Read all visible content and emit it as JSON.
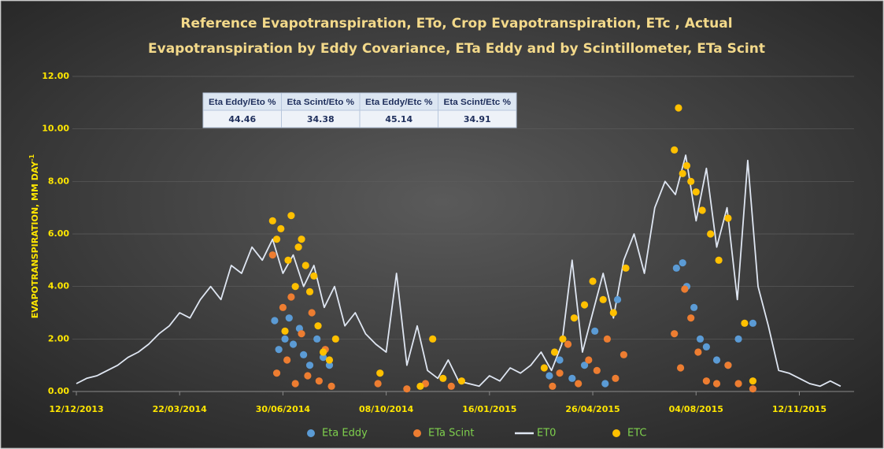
{
  "chart_data": {
    "type": "scatter",
    "title": [
      "Reference Evapotranspiration, ETo, Crop Evapotranspiration, ETc , Actual",
      "Evapotranspiration by Eddy Covariance, ETa Eddy and by Scintillometer, ETa Scint"
    ],
    "ylabel": "EVAPOTRANSPIRATION, MM DAY",
    "ylabel_superscript": "-1",
    "ylim": [
      0,
      12
    ],
    "yticks": [
      {
        "value": 0,
        "label": "0.00"
      },
      {
        "value": 2,
        "label": "2.00"
      },
      {
        "value": 4,
        "label": "4.00"
      },
      {
        "value": 6,
        "label": "6.00"
      },
      {
        "value": 8,
        "label": "8.00"
      },
      {
        "value": 10,
        "label": "10.00"
      },
      {
        "value": 12,
        "label": "12.00"
      }
    ],
    "xlim": [
      "12/12/2013",
      "04/01/2016"
    ],
    "xticks": [
      "12/12/2013",
      "22/03/2014",
      "30/06/2014",
      "08/10/2014",
      "16/01/2015",
      "26/04/2015",
      "04/08/2015",
      "12/11/2015"
    ],
    "grid": true,
    "legend": "bottom",
    "table": {
      "headers": [
        "Eta Eddy/Eto %",
        "Eta Scint/Eto %",
        "Eta Eddy/Etc %",
        "Eta Scint/Etc %"
      ],
      "values": [
        44.46,
        34.38,
        45.14,
        34.91
      ]
    },
    "series": [
      {
        "name": "Eta Eddy",
        "type": "scatter",
        "color": "#5b9bd5",
        "x": [
          "22/06/2014",
          "26/06/2014",
          "02/07/2014",
          "06/07/2014",
          "10/07/2014",
          "16/07/2014",
          "20/07/2014",
          "26/07/2014",
          "02/08/2014",
          "08/08/2014",
          "14/08/2014",
          "15/03/2015",
          "25/03/2015",
          "06/04/2015",
          "18/04/2015",
          "28/04/2015",
          "08/05/2015",
          "20/05/2015",
          "16/07/2015",
          "22/07/2015",
          "26/07/2015",
          "02/08/2015",
          "08/08/2015",
          "14/08/2015",
          "24/08/2015",
          "04/09/2015",
          "14/09/2015",
          "28/09/2015"
        ],
        "values": [
          2.7,
          1.6,
          2.0,
          2.8,
          1.8,
          2.4,
          1.4,
          1.0,
          2.0,
          1.3,
          1.0,
          0.6,
          1.2,
          0.5,
          1.0,
          2.3,
          0.3,
          3.5,
          4.7,
          4.9,
          4.0,
          3.2,
          2.0,
          1.7,
          1.2,
          1.0,
          2.0,
          2.6
        ]
      },
      {
        "name": "ETa Scint",
        "type": "scatter",
        "color": "#ed7d31",
        "x": [
          "20/06/2014",
          "24/06/2014",
          "30/06/2014",
          "04/07/2014",
          "08/07/2014",
          "12/07/2014",
          "18/07/2014",
          "24/07/2014",
          "28/07/2014",
          "04/08/2014",
          "10/08/2014",
          "16/08/2014",
          "30/09/2014",
          "28/10/2014",
          "15/11/2014",
          "10/12/2014",
          "18/03/2015",
          "25/03/2015",
          "02/04/2015",
          "12/04/2015",
          "22/04/2015",
          "30/04/2015",
          "10/05/2015",
          "18/05/2015",
          "26/05/2015",
          "14/07/2015",
          "20/07/2015",
          "24/07/2015",
          "30/07/2015",
          "06/08/2015",
          "14/08/2015",
          "24/08/2015",
          "04/09/2015",
          "14/09/2015",
          "28/09/2015"
        ],
        "values": [
          5.2,
          0.7,
          3.2,
          1.2,
          3.6,
          0.3,
          2.2,
          0.6,
          3.0,
          0.4,
          1.6,
          0.2,
          0.3,
          0.1,
          0.3,
          0.2,
          0.2,
          0.7,
          1.8,
          0.3,
          1.2,
          0.8,
          2.0,
          0.5,
          1.4,
          2.2,
          0.9,
          3.9,
          2.8,
          1.5,
          0.4,
          0.3,
          1.0,
          0.3,
          0.1
        ]
      },
      {
        "name": "ET0",
        "type": "line",
        "color": "#dfe6f2",
        "x": [
          "12/12/2013",
          "22/12/2013",
          "01/01/2014",
          "11/01/2014",
          "21/01/2014",
          "31/01/2014",
          "10/02/2014",
          "20/02/2014",
          "02/03/2014",
          "12/03/2014",
          "22/03/2014",
          "01/04/2014",
          "11/04/2014",
          "21/04/2014",
          "01/05/2014",
          "11/05/2014",
          "21/05/2014",
          "31/05/2014",
          "10/06/2014",
          "20/06/2014",
          "30/06/2014",
          "10/07/2014",
          "20/07/2014",
          "30/07/2014",
          "09/08/2014",
          "19/08/2014",
          "29/08/2014",
          "08/09/2014",
          "18/09/2014",
          "28/09/2014",
          "08/10/2014",
          "18/10/2014",
          "28/10/2014",
          "07/11/2014",
          "17/11/2014",
          "27/11/2014",
          "07/12/2014",
          "17/12/2014",
          "27/12/2014",
          "06/01/2015",
          "16/01/2015",
          "26/01/2015",
          "05/02/2015",
          "15/02/2015",
          "25/02/2015",
          "07/03/2015",
          "17/03/2015",
          "27/03/2015",
          "06/04/2015",
          "16/04/2015",
          "26/04/2015",
          "06/05/2015",
          "16/05/2015",
          "26/05/2015",
          "05/06/2015",
          "15/06/2015",
          "25/06/2015",
          "05/07/2015",
          "15/07/2015",
          "25/07/2015",
          "04/08/2015",
          "14/08/2015",
          "24/08/2015",
          "03/09/2015",
          "13/09/2015",
          "23/09/2015",
          "03/10/2015",
          "13/10/2015",
          "23/10/2015",
          "02/11/2015",
          "12/11/2015",
          "22/11/2015",
          "02/12/2015",
          "12/12/2015",
          "22/12/2015"
        ],
        "values": [
          0.3,
          0.5,
          0.6,
          0.8,
          1.0,
          1.3,
          1.5,
          1.8,
          2.2,
          2.5,
          3.0,
          2.8,
          3.5,
          4.0,
          3.5,
          4.8,
          4.5,
          5.5,
          5.0,
          5.8,
          4.5,
          5.2,
          4.0,
          4.8,
          3.2,
          4.0,
          2.5,
          3.0,
          2.2,
          1.8,
          1.5,
          4.5,
          1.0,
          2.5,
          0.8,
          0.5,
          1.2,
          0.4,
          0.3,
          0.2,
          0.6,
          0.4,
          0.9,
          0.7,
          1.0,
          1.5,
          0.8,
          1.8,
          5.0,
          1.5,
          3.0,
          4.5,
          2.8,
          5.0,
          6.0,
          4.5,
          7.0,
          8.0,
          7.5,
          9.0,
          6.5,
          8.5,
          5.5,
          7.0,
          3.5,
          8.8,
          4.0,
          2.5,
          0.8,
          0.7,
          0.5,
          0.3,
          0.2,
          0.4,
          0.2
        ]
      },
      {
        "name": "ETC",
        "type": "scatter",
        "color": "#ffc000",
        "x": [
          "20/06/2014",
          "24/06/2014",
          "28/06/2014",
          "02/07/2014",
          "05/07/2014",
          "08/07/2014",
          "12/07/2014",
          "15/07/2014",
          "18/07/2014",
          "22/07/2014",
          "26/07/2014",
          "30/07/2014",
          "03/08/2014",
          "08/08/2014",
          "14/08/2014",
          "20/08/2014",
          "02/10/2014",
          "10/11/2014",
          "22/11/2014",
          "02/12/2014",
          "20/12/2014",
          "10/03/2015",
          "20/03/2015",
          "28/03/2015",
          "08/04/2015",
          "18/04/2015",
          "26/04/2015",
          "06/05/2015",
          "16/05/2015",
          "28/05/2015",
          "14/07/2015",
          "18/07/2015",
          "22/07/2015",
          "26/07/2015",
          "30/07/2015",
          "04/08/2015",
          "10/08/2015",
          "18/08/2015",
          "26/08/2015",
          "04/09/2015",
          "20/09/2015",
          "28/09/2015"
        ],
        "values": [
          6.5,
          5.8,
          6.2,
          2.3,
          5.0,
          6.7,
          4.0,
          5.5,
          5.8,
          4.8,
          3.8,
          4.4,
          2.5,
          1.5,
          1.2,
          2.0,
          0.7,
          0.2,
          2.0,
          0.5,
          0.4,
          0.9,
          1.5,
          2.0,
          2.8,
          3.3,
          4.2,
          3.5,
          3.0,
          4.7,
          9.2,
          10.8,
          8.3,
          8.6,
          8.0,
          7.6,
          6.9,
          6.0,
          5.0,
          6.6,
          2.6,
          0.4
        ]
      }
    ]
  }
}
